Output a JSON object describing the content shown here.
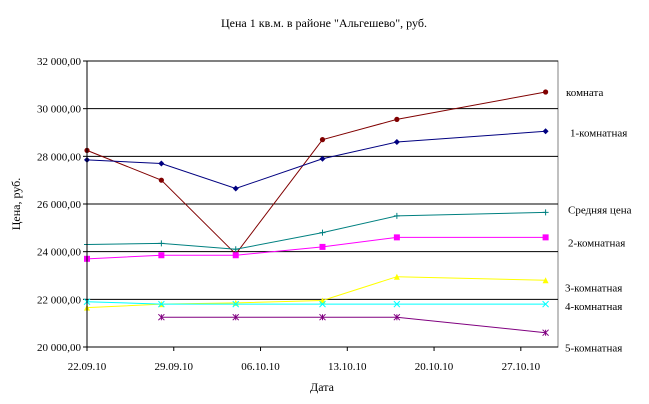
{
  "chart_data": {
    "type": "line",
    "title": "Цена 1 кв.м. в районе \"Альгешево\", руб.",
    "xlabel": "Дата",
    "ylabel": "Цена, руб.",
    "ylim": [
      20000,
      32000
    ],
    "ytick_step": 2000,
    "yticks": [
      "20 000,00",
      "22 000,00",
      "24 000,00",
      "26 000,00",
      "28 000,00",
      "30 000,00",
      "32 000,00"
    ],
    "xlim": [
      "2010-09-22",
      "2010-10-30"
    ],
    "xticks": [
      {
        "date": "2010-09-22",
        "label": "22.09.10"
      },
      {
        "date": "2010-09-29",
        "label": "29.09.10"
      },
      {
        "date": "2010-10-06",
        "label": "06.10.10"
      },
      {
        "date": "2010-10-13",
        "label": "13.10.10"
      },
      {
        "date": "2010-10-20",
        "label": "20.10.10"
      },
      {
        "date": "2010-10-27",
        "label": "27.10.10"
      }
    ],
    "grid": "horizontal",
    "series": [
      {
        "name": "комната",
        "color": "#800000",
        "marker": "circle",
        "x": [
          "2010-09-22",
          "2010-09-28",
          "2010-10-04",
          "2010-10-11",
          "2010-10-17",
          "2010-10-29"
        ],
        "y": [
          28250,
          27000,
          23900,
          28700,
          29550,
          30700
        ]
      },
      {
        "name": "1-комнатная",
        "color": "#000080",
        "marker": "diamond",
        "x": [
          "2010-09-22",
          "2010-09-28",
          "2010-10-04",
          "2010-10-11",
          "2010-10-17",
          "2010-10-29"
        ],
        "y": [
          27850,
          27700,
          26650,
          27900,
          28600,
          29050
        ]
      },
      {
        "name": "Средняя цена",
        "color": "#008080",
        "marker": "plus",
        "x": [
          "2010-09-22",
          "2010-09-28",
          "2010-10-04",
          "2010-10-11",
          "2010-10-17",
          "2010-10-29"
        ],
        "y": [
          24300,
          24350,
          24100,
          24800,
          25500,
          25650
        ]
      },
      {
        "name": "2-комнатная",
        "color": "#FF00FF",
        "marker": "square",
        "x": [
          "2010-09-22",
          "2010-09-28",
          "2010-10-04",
          "2010-10-11",
          "2010-10-17",
          "2010-10-29"
        ],
        "y": [
          23700,
          23850,
          23850,
          24200,
          24600,
          24600
        ]
      },
      {
        "name": "3-комнатная",
        "color": "#FFFF00",
        "marker": "triangle",
        "x": [
          "2010-09-22",
          "2010-09-28",
          "2010-10-04",
          "2010-10-11",
          "2010-10-17",
          "2010-10-29"
        ],
        "y": [
          21650,
          21800,
          21850,
          21950,
          22950,
          22800
        ]
      },
      {
        "name": "4-комнатная",
        "color": "#00FFFF",
        "marker": "cross",
        "x": [
          "2010-09-22",
          "2010-09-28",
          "2010-10-04",
          "2010-10-11",
          "2010-10-17",
          "2010-10-29"
        ],
        "y": [
          21900,
          21800,
          21800,
          21800,
          21800,
          21800
        ]
      },
      {
        "name": "5-комнатная",
        "color": "#800080",
        "marker": "asterisk",
        "x": [
          "2010-09-28",
          "2010-10-04",
          "2010-10-11",
          "2010-10-17",
          "2010-10-29"
        ],
        "y": [
          21250,
          21250,
          21250,
          21250,
          20600
        ]
      }
    ]
  }
}
